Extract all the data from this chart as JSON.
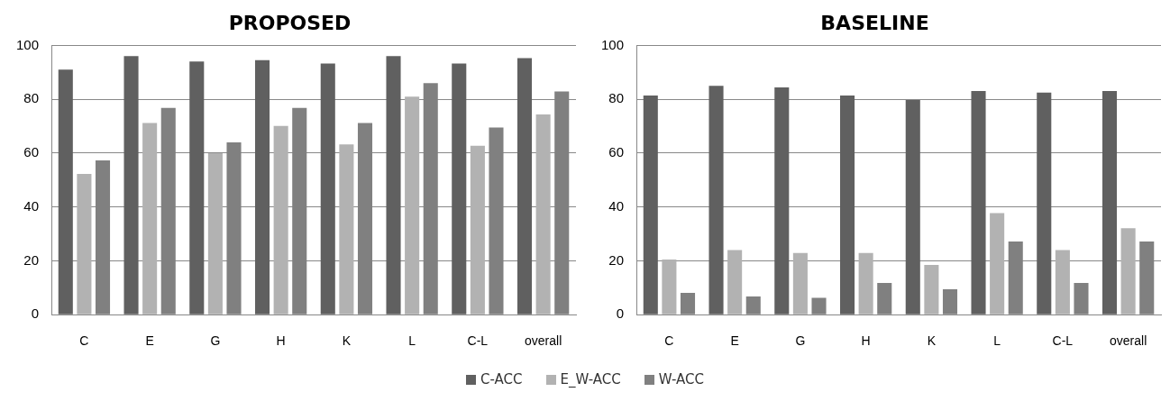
{
  "chart_data": [
    {
      "type": "bar",
      "title": "PROPOSED",
      "categories": [
        "C",
        "E",
        "G",
        "H",
        "K",
        "L",
        "C-L",
        "overall"
      ],
      "series": [
        {
          "name": "C-ACC",
          "color": "#606060",
          "values": [
            91,
            96,
            94,
            94.5,
            93.3,
            96,
            93.3,
            95.3
          ]
        },
        {
          "name": "E_W-ACC",
          "color": "#b2b2b2",
          "values": [
            52.3,
            71.2,
            60,
            70.1,
            63.2,
            81,
            62.7,
            74.4
          ]
        },
        {
          "name": "W-ACC",
          "color": "#808080",
          "values": [
            57.3,
            76.8,
            64,
            76.8,
            71.2,
            86,
            69.5,
            82.9
          ]
        }
      ],
      "ylim": [
        0,
        100
      ],
      "yticks": [
        0,
        20,
        40,
        60,
        80,
        100
      ],
      "grid": "y",
      "legend": "bottom"
    },
    {
      "type": "bar",
      "title": "BASELINE",
      "categories": [
        "C",
        "E",
        "G",
        "H",
        "K",
        "L",
        "C-L",
        "overall"
      ],
      "series": [
        {
          "name": "C-ACC",
          "color": "#606060",
          "values": [
            81.4,
            85,
            84.4,
            81.4,
            79.7,
            83.1,
            82.5,
            83.1
          ]
        },
        {
          "name": "E_W-ACC",
          "color": "#b2b2b2",
          "values": [
            20.5,
            24,
            22.9,
            22.9,
            18.5,
            37.7,
            24,
            32.1
          ]
        },
        {
          "name": "W-ACC",
          "color": "#808080",
          "values": [
            8.1,
            6.8,
            6.3,
            11.8,
            9.4,
            27.2,
            11.8,
            27.2
          ]
        }
      ],
      "ylim": [
        0,
        100
      ],
      "yticks": [
        0,
        20,
        40,
        60,
        80,
        100
      ],
      "grid": "y",
      "legend": "bottom"
    }
  ]
}
